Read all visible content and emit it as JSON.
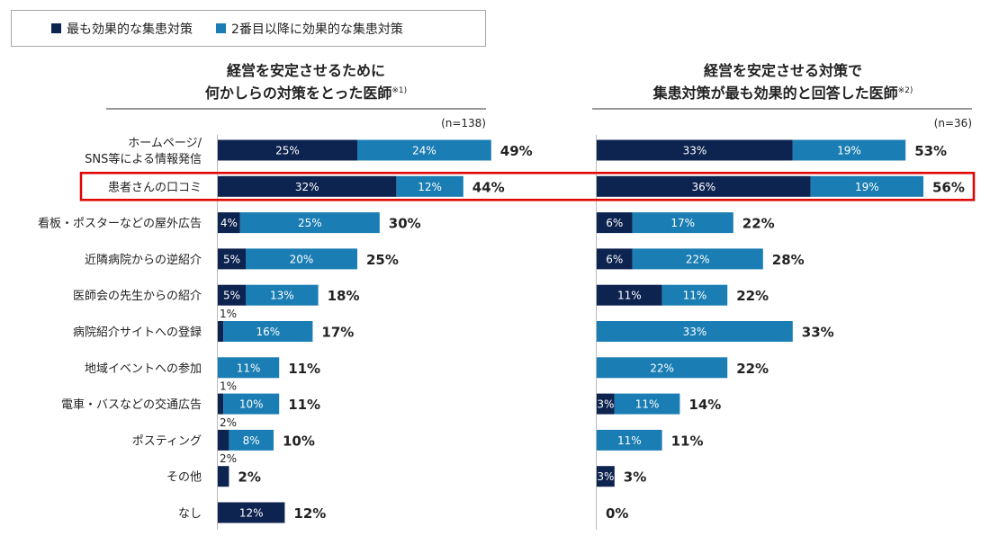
{
  "legend": {
    "items": [
      {
        "label": "最も効果的な集患対策",
        "color": "#0d2350"
      },
      {
        "label": "2番目以降に効果的な集患対策",
        "color": "#1a7db3"
      }
    ]
  },
  "colors": {
    "series1": "#0d2350",
    "series2": "#1a7db3",
    "highlight": "#e00000"
  },
  "panels": [
    {
      "title_line1": "経営を安定させるために",
      "title_line2": "何かしらの対策をとった医師",
      "title_note": "※1)"
    },
    {
      "title_line1": "経営を安定させる対策で",
      "title_line2": "集患対策が最も効果的と回答した医師",
      "title_note": "※2)"
    }
  ],
  "chart_data": [
    {
      "type": "bar",
      "orientation": "horizontal",
      "stacked": true,
      "title": "経営を安定させるために何かしらの対策をとった医師※1)",
      "n_label": "(n=138)",
      "categories": [
        "ホームページ/SNS等による情報発信",
        "患者さんの口コミ",
        "看板・ポスターなどの屋外広告",
        "近隣病院からの逆紹介",
        "医師会の先生からの紹介",
        "病院紹介サイトへの登録",
        "地域イベントへの参加",
        "電車・バスなどの交通広告",
        "ポスティング",
        "その他",
        "なし"
      ],
      "category_lines": [
        [
          "ホームページ/",
          "SNS等による情報発信"
        ],
        [
          "患者さんの口コミ"
        ],
        [
          "看板・ポスターなどの屋外広告"
        ],
        [
          "近隣病院からの逆紹介"
        ],
        [
          "医師会の先生からの紹介"
        ],
        [
          "病院紹介サイトへの登録"
        ],
        [
          "地域イベントへの参加"
        ],
        [
          "電車・バスなどの交通広告"
        ],
        [
          "ポスティング"
        ],
        [
          "その他"
        ],
        [
          "なし"
        ]
      ],
      "series": [
        {
          "name": "最も効果的な集患対策",
          "values": [
            25,
            32,
            4,
            5,
            5,
            1,
            0,
            1,
            2,
            2,
            12
          ],
          "labels": [
            "25%",
            "32%",
            "4%",
            "5%",
            "5%",
            "1%",
            "",
            "1%",
            "2%",
            "2%",
            "12%"
          ]
        },
        {
          "name": "2番目以降に効果的な集患対策",
          "values": [
            24,
            12,
            25,
            20,
            13,
            16,
            11,
            10,
            8,
            0,
            0
          ],
          "labels": [
            "24%",
            "12%",
            "25%",
            "20%",
            "13%",
            "16%",
            "11%",
            "10%",
            "8%",
            "",
            ""
          ]
        }
      ],
      "totals": [
        "49%",
        "44%",
        "30%",
        "25%",
        "18%",
        "17%",
        "11%",
        "11%",
        "10%",
        "2%",
        "12%"
      ],
      "highlighted_category": "患者さんの口コミ"
    },
    {
      "type": "bar",
      "orientation": "horizontal",
      "stacked": true,
      "title": "経営を安定させる対策で集患対策が最も効果的と回答した医師※2)",
      "n_label": "(n=36)",
      "categories": [
        "ホームページ/SNS等による情報発信",
        "患者さんの口コミ",
        "看板・ポスターなどの屋外広告",
        "近隣病院からの逆紹介",
        "医師会の先生からの紹介",
        "病院紹介サイトへの登録",
        "地域イベントへの参加",
        "電車・バスなどの交通広告",
        "ポスティング",
        "その他",
        "なし"
      ],
      "series": [
        {
          "name": "最も効果的な集患対策",
          "values": [
            33,
            36,
            6,
            6,
            11,
            0,
            0,
            3,
            0,
            3,
            0
          ],
          "labels": [
            "33%",
            "36%",
            "6%",
            "6%",
            "11%",
            "",
            "",
            "3%",
            "",
            "3%",
            ""
          ]
        },
        {
          "name": "2番目以降に効果的な集患対策",
          "values": [
            19,
            19,
            17,
            22,
            11,
            33,
            22,
            11,
            11,
            0,
            0
          ],
          "labels": [
            "19%",
            "19%",
            "17%",
            "22%",
            "11%",
            "33%",
            "22%",
            "11%",
            "11%",
            "",
            ""
          ]
        }
      ],
      "totals": [
        "53%",
        "56%",
        "22%",
        "28%",
        "22%",
        "33%",
        "22%",
        "14%",
        "11%",
        "3%",
        "0%"
      ],
      "highlighted_category": "患者さんの口コミ"
    }
  ]
}
